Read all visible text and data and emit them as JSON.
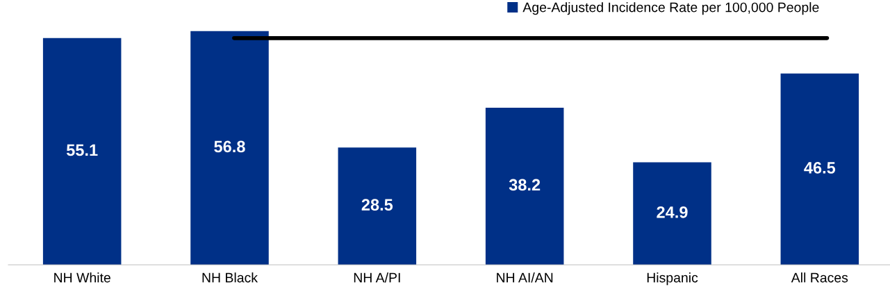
{
  "chart_data": {
    "type": "bar",
    "categories": [
      "NH White",
      "NH Black",
      "NH A/PI",
      "NH AI/AN",
      "Hispanic",
      "All Races"
    ],
    "series": [
      {
        "name": "Age-Adjusted Incidence Rate per 100,000 People",
        "color": "#003087",
        "values": [
          55.1,
          56.8,
          28.5,
          38.2,
          24.9,
          46.5
        ]
      }
    ],
    "ref_lines": [
      {
        "axis": "y",
        "value": 55.1,
        "color": "#000000",
        "line_style": "solid"
      }
    ],
    "data_labels": true,
    "legend": "top right",
    "grid": false,
    "tick_labels": "x"
  }
}
